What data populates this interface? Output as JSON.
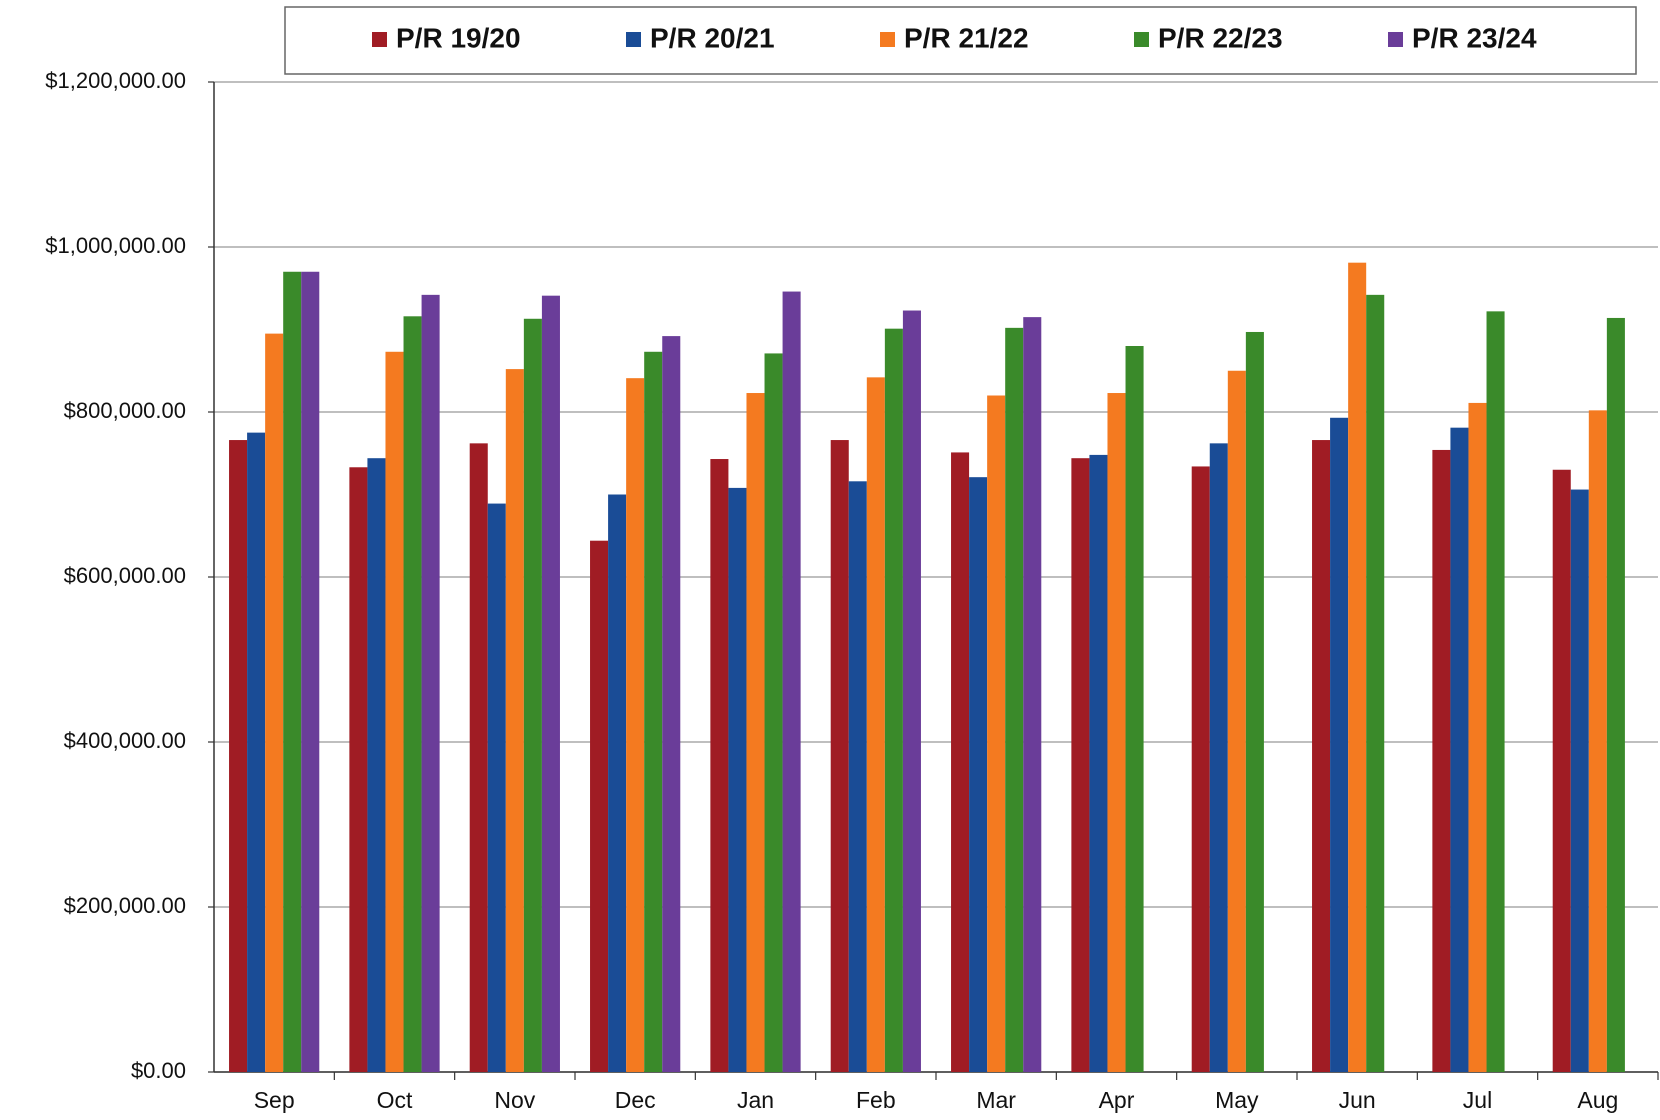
{
  "chart_data": {
    "type": "bar",
    "categories": [
      "Sep",
      "Oct",
      "Nov",
      "Dec",
      "Jan",
      "Feb",
      "Mar",
      "Apr",
      "May",
      "Jun",
      "Jul",
      "Aug"
    ],
    "series": [
      {
        "name": "P/R 19/20",
        "color": "#a01c24",
        "values": [
          766000,
          733000,
          762000,
          644000,
          743000,
          766000,
          751000,
          744000,
          734000,
          766000,
          754000,
          730000
        ]
      },
      {
        "name": "P/R 20/21",
        "color": "#1a4c96",
        "values": [
          775000,
          744000,
          689000,
          700000,
          708000,
          716000,
          721000,
          748000,
          762000,
          793000,
          781000,
          706000
        ]
      },
      {
        "name": "P/R 21/22",
        "color": "#f47a20",
        "values": [
          895000,
          873000,
          852000,
          841000,
          823000,
          842000,
          820000,
          823000,
          850000,
          981000,
          811000,
          802000
        ]
      },
      {
        "name": "P/R 22/23",
        "color": "#3a8a2a",
        "values": [
          970000,
          916000,
          913000,
          873000,
          871000,
          901000,
          902000,
          880000,
          897000,
          942000,
          922000,
          914000
        ]
      },
      {
        "name": "P/R 23/24",
        "color": "#6a3d99",
        "values": [
          970000,
          942000,
          941000,
          892000,
          946000,
          923000,
          915000,
          null,
          null,
          null,
          null,
          null
        ]
      }
    ],
    "ylim": [
      0,
      1200000
    ],
    "yticks": [
      {
        "value": 0,
        "label": "$0.00"
      },
      {
        "value": 200000,
        "label": "$200,000.00"
      },
      {
        "value": 400000,
        "label": "$400,000.00"
      },
      {
        "value": 600000,
        "label": "$600,000.00"
      },
      {
        "value": 800000,
        "label": "$800,000.00"
      },
      {
        "value": 1000000,
        "label": "$1,000,000.00"
      },
      {
        "value": 1200000,
        "label": "$1,200,000.00"
      }
    ],
    "grid": true,
    "legend": "top"
  }
}
